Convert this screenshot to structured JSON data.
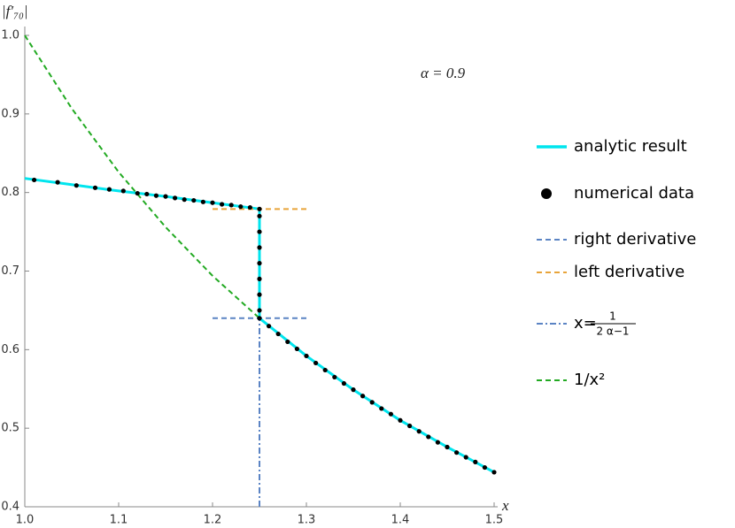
{
  "chart_data": {
    "type": "line",
    "y_label": "|f′₇₀|",
    "x_label": "x",
    "annotation": "α = 0.9",
    "xlim": [
      1.0,
      1.5
    ],
    "ylim": [
      0.4,
      1.0
    ],
    "xticks": [
      {
        "value": 1.0,
        "label": "1.0"
      },
      1.1,
      1.2,
      1.3,
      1.4,
      1.5
    ],
    "yticks": [
      0.4,
      0.5,
      0.6,
      0.7,
      0.8,
      0.9,
      {
        "value": 1.0,
        "label": "1.0"
      }
    ],
    "series": [
      {
        "name": "analytic result",
        "color": "#00e5ee",
        "style": "solid",
        "x": [
          1.0,
          1.05,
          1.1,
          1.15,
          1.2,
          1.25,
          1.25,
          1.3,
          1.35,
          1.4,
          1.45,
          1.5
        ],
        "values": [
          0.818,
          0.81,
          0.802,
          0.795,
          0.787,
          0.779,
          0.64,
          0.592,
          0.549,
          0.51,
          0.476,
          0.444
        ]
      },
      {
        "name": "numerical data",
        "color": "#000000",
        "style": "dots",
        "x": [
          1.01,
          1.035,
          1.055,
          1.075,
          1.09,
          1.105,
          1.12,
          1.13,
          1.14,
          1.15,
          1.16,
          1.17,
          1.18,
          1.19,
          1.2,
          1.21,
          1.22,
          1.23,
          1.24,
          1.25,
          1.25,
          1.25,
          1.25,
          1.25,
          1.25,
          1.25,
          1.25,
          1.25,
          1.26,
          1.27,
          1.28,
          1.29,
          1.3,
          1.31,
          1.32,
          1.33,
          1.34,
          1.35,
          1.36,
          1.37,
          1.38,
          1.39,
          1.4,
          1.41,
          1.42,
          1.43,
          1.44,
          1.45,
          1.46,
          1.47,
          1.48,
          1.49,
          1.5
        ],
        "values": [
          0.816,
          0.813,
          0.809,
          0.806,
          0.804,
          0.802,
          0.799,
          0.798,
          0.796,
          0.795,
          0.793,
          0.791,
          0.79,
          0.788,
          0.787,
          0.785,
          0.784,
          0.782,
          0.781,
          0.779,
          0.77,
          0.75,
          0.73,
          0.71,
          0.69,
          0.67,
          0.65,
          0.64,
          0.63,
          0.62,
          0.61,
          0.601,
          0.592,
          0.583,
          0.574,
          0.565,
          0.557,
          0.549,
          0.541,
          0.533,
          0.525,
          0.518,
          0.51,
          0.503,
          0.496,
          0.489,
          0.482,
          0.476,
          0.469,
          0.463,
          0.457,
          0.45,
          0.444
        ]
      },
      {
        "name": "right derivative",
        "color": "#5b84c4",
        "style": "dashed",
        "x": [
          1.2,
          1.3
        ],
        "values": [
          0.64,
          0.64
        ]
      },
      {
        "name": "left derivative",
        "color": "#e8a43a",
        "style": "dashed",
        "x": [
          1.2,
          1.3
        ],
        "values": [
          0.779,
          0.779
        ]
      },
      {
        "name": "x=",
        "fraction": {
          "numerator": "1",
          "denominator": "2 α−1"
        },
        "color": "#5b84c4",
        "style": "dashdot",
        "x": [
          1.25,
          1.25
        ],
        "values": [
          0.4,
          0.64
        ]
      },
      {
        "name": "1/x²",
        "color": "#22aa22",
        "style": "dashed",
        "x": [
          1.0,
          1.05,
          1.1,
          1.15,
          1.2,
          1.25
        ],
        "values": [
          1.0,
          0.907,
          0.826,
          0.756,
          0.694,
          0.64
        ]
      }
    ]
  }
}
